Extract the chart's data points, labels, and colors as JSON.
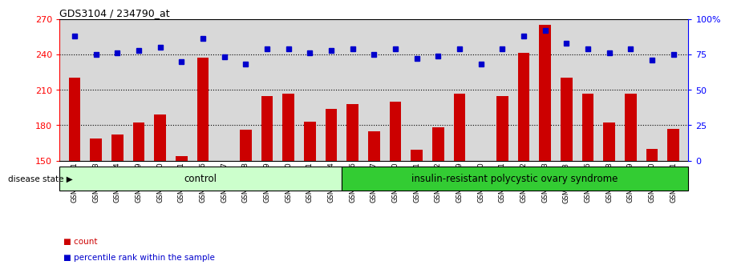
{
  "title": "GDS3104 / 234790_at",
  "categories": [
    "GSM155631",
    "GSM155643",
    "GSM155644",
    "GSM155729",
    "GSM156170",
    "GSM156171",
    "GSM156176",
    "GSM156177",
    "GSM156178",
    "GSM156179",
    "GSM156180",
    "GSM156181",
    "GSM156184",
    "GSM156186",
    "GSM156187",
    "GSM156510",
    "GSM156511",
    "GSM156512",
    "GSM156749",
    "GSM156750",
    "GSM156751",
    "GSM156752",
    "GSM156753",
    "GSM156763",
    "GSM156946",
    "GSM156948",
    "GSM156949",
    "GSM156950",
    "GSM156951"
  ],
  "count_values": [
    220,
    169,
    172,
    182,
    189,
    154,
    237,
    150,
    176,
    205,
    207,
    183,
    194,
    198,
    175,
    200,
    159,
    178,
    207,
    150,
    205,
    241,
    265,
    220,
    207,
    182,
    207,
    160,
    177
  ],
  "percentile_values": [
    88,
    75,
    76,
    78,
    80,
    70,
    86,
    73,
    68,
    79,
    79,
    76,
    78,
    79,
    75,
    79,
    72,
    74,
    79,
    68,
    79,
    88,
    92,
    83,
    79,
    76,
    79,
    71,
    75
  ],
  "ylim_left": [
    150,
    270
  ],
  "ylim_right": [
    0,
    100
  ],
  "yticks_left": [
    150,
    180,
    210,
    240,
    270
  ],
  "yticks_right": [
    0,
    25,
    50,
    75,
    100
  ],
  "ytick_labels_right": [
    "0",
    "25",
    "50",
    "75",
    "100%"
  ],
  "bar_color": "#cc0000",
  "marker_color": "#0000cc",
  "bg_color": "#d8d8d8",
  "control_count": 13,
  "control_label": "control",
  "disease_label": "insulin-resistant polycystic ovary syndrome",
  "control_color": "#ccffcc",
  "disease_color": "#33cc33",
  "disease_state_label": "disease state",
  "legend_count": "count",
  "legend_percentile": "percentile rank within the sample"
}
